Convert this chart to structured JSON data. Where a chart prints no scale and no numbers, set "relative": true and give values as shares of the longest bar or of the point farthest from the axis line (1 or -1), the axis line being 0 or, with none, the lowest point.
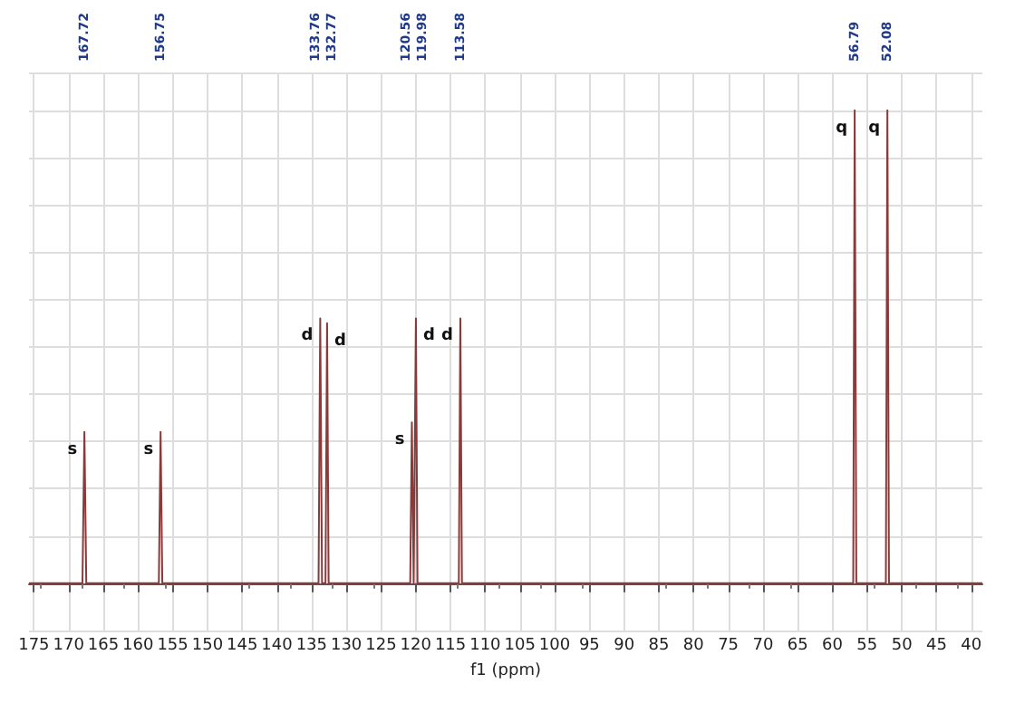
{
  "chart_data": {
    "type": "line",
    "relative": true,
    "xlabel": "f1 (ppm)",
    "color": "#8b3a3a",
    "x": [
      175.7,
      168.0,
      167.72,
      167.45,
      157.0,
      156.75,
      156.5,
      134.0,
      133.76,
      133.5,
      133.0,
      132.77,
      132.55,
      120.8,
      120.56,
      120.3,
      120.2,
      119.98,
      119.75,
      113.8,
      113.58,
      113.35,
      57.0,
      56.79,
      56.55,
      52.3,
      52.08,
      51.85,
      38.4
    ],
    "values": [
      0,
      0,
      0.32,
      0,
      0,
      0.32,
      0,
      0,
      0.56,
      0,
      0,
      0.55,
      0,
      0,
      0.34,
      0,
      0,
      0.56,
      0,
      0,
      0.56,
      0,
      0,
      1,
      0,
      0,
      1,
      0,
      0
    ],
    "xlim": [
      175.7,
      38.4
    ],
    "xticks": [
      175,
      170,
      165,
      160,
      155,
      150,
      145,
      140,
      135,
      130,
      125,
      120,
      115,
      110,
      105,
      100,
      95,
      90,
      85,
      80,
      75,
      70,
      65,
      60,
      55,
      50,
      45,
      40
    ],
    "grid": true,
    "marker": "none",
    "annotations": [
      "167.72",
      "156.75",
      "133.76",
      "132.77",
      "120.56",
      "119.98",
      "113.58",
      "56.79",
      "52.08",
      {
        "text": "s",
        "x": 167.72,
        "y": 0.32
      },
      {
        "text": "s",
        "x": 156.75,
        "y": 0.32
      },
      {
        "text": "d",
        "x": 133.76,
        "y": 0.56
      },
      {
        "text": "d",
        "x": 132.77,
        "y": 0.55
      },
      {
        "text": "s",
        "x": 120.56,
        "y": 0.34
      },
      {
        "text": "d",
        "x": 119.98,
        "y": 0.56
      },
      {
        "text": "d",
        "x": 113.58,
        "y": 0.56
      },
      {
        "text": "q",
        "x": 56.79,
        "y": 1
      },
      {
        "text": "q",
        "x": 52.08,
        "y": 1
      }
    ]
  }
}
